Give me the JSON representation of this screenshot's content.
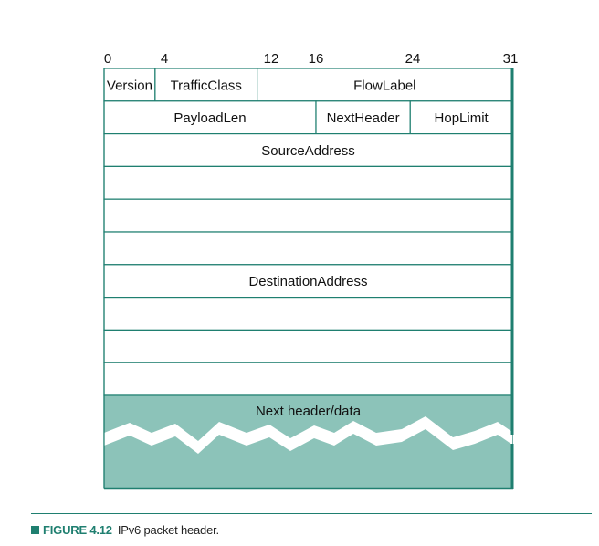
{
  "colors": {
    "accent": "#1f7f70",
    "data_fill": "#8cc3b9",
    "border": "#1f7f70"
  },
  "bit_positions": [
    "0",
    "4",
    "12",
    "16",
    "24",
    "31"
  ],
  "rows": [
    {
      "fields": [
        {
          "bits": [
            0,
            4
          ],
          "label": "Version"
        },
        {
          "bits": [
            4,
            12
          ],
          "label": "TrafficClass"
        },
        {
          "bits": [
            12,
            32
          ],
          "label": "FlowLabel"
        }
      ]
    },
    {
      "fields": [
        {
          "bits": [
            0,
            16
          ],
          "label": "PayloadLen"
        },
        {
          "bits": [
            16,
            24
          ],
          "label": "NextHeader"
        },
        {
          "bits": [
            24,
            32
          ],
          "label": "HopLimit"
        }
      ]
    },
    {
      "fields": [
        {
          "bits": [
            0,
            32
          ],
          "label": "SourceAddress"
        }
      ]
    },
    {
      "fields": [
        {
          "bits": [
            0,
            32
          ],
          "label": ""
        }
      ]
    },
    {
      "fields": [
        {
          "bits": [
            0,
            32
          ],
          "label": ""
        }
      ]
    },
    {
      "fields": [
        {
          "bits": [
            0,
            32
          ],
          "label": ""
        }
      ]
    },
    {
      "fields": [
        {
          "bits": [
            0,
            32
          ],
          "label": "DestinationAddress"
        }
      ]
    },
    {
      "fields": [
        {
          "bits": [
            0,
            32
          ],
          "label": ""
        }
      ]
    },
    {
      "fields": [
        {
          "bits": [
            0,
            32
          ],
          "label": ""
        }
      ]
    },
    {
      "fields": [
        {
          "bits": [
            0,
            32
          ],
          "label": ""
        }
      ]
    }
  ],
  "data_section": {
    "label": "Next header/data"
  },
  "caption": {
    "label": "FIGURE 4.12",
    "text": "IPv6 packet header."
  }
}
